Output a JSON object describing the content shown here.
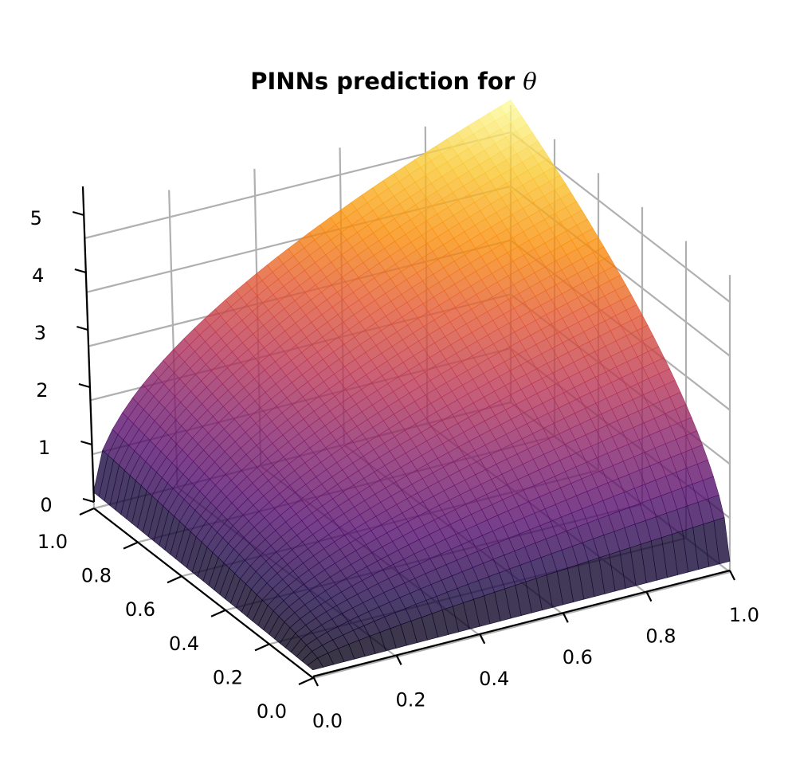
{
  "chart_data": {
    "type": "surface",
    "title": "PINNs prediction for",
    "title_symbol": "θ",
    "x_ticks": [
      "0.0",
      "0.2",
      "0.4",
      "0.6",
      "0.8",
      "1.0"
    ],
    "y_ticks": [
      "0.0",
      "0.2",
      "0.4",
      "0.6",
      "0.8",
      "1.0"
    ],
    "z_ticks": [
      "0",
      "1",
      "2",
      "3",
      "4",
      "5"
    ],
    "xlim": [
      0,
      1
    ],
    "ylim": [
      0,
      1
    ],
    "zlim": [
      0,
      5.5
    ],
    "colormap": "inferno",
    "surface_alpha": 0.8,
    "grid": true,
    "surface": {
      "description_values": "theta over (x, y) in [0,1]^2",
      "corners": {
        "x0_y0": 0.15,
        "x1_y0": 0.2,
        "x0_y1": 0.3,
        "x1_y1": 5.6
      },
      "peak": 5.6
    }
  }
}
